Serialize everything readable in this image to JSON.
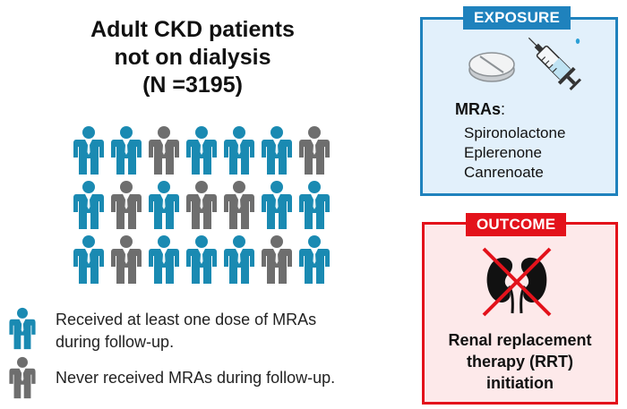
{
  "title": {
    "line1": "Adult CKD patients",
    "line2": "not on dialysis",
    "line3": "(N =3195)"
  },
  "colors": {
    "received": "#1a8ab2",
    "never": "#6e6e6e",
    "exposure_border": "#1f82bd",
    "exposure_fill": "#e2f0fb",
    "outcome_border": "#e3121b",
    "outcome_fill": "#fde9ea"
  },
  "people_grid": [
    [
      "received",
      "received",
      "never",
      "received",
      "received",
      "received",
      "never"
    ],
    [
      "received",
      "never",
      "received",
      "never",
      "never",
      "received",
      "received"
    ],
    [
      "received",
      "never",
      "received",
      "received",
      "received",
      "never",
      "received"
    ]
  ],
  "legend": {
    "received_line1": "Received at least one dose of MRAs",
    "received_line2": "during follow-up.",
    "never_line1": "Never received MRAs during follow-up."
  },
  "exposure": {
    "tag": "EXPOSURE",
    "icons": [
      "pill-icon",
      "syringe-icon"
    ],
    "mras_label": "MRAs",
    "mras_colon": ":",
    "drugs": [
      "Spironolactone",
      "Eplerenone",
      "Canrenoate"
    ]
  },
  "outcome": {
    "tag": "OUTCOME",
    "icon": "crossed-kidneys-icon",
    "line1": "Renal replacement",
    "line2": "therapy (RRT)",
    "line3": "initiation"
  }
}
